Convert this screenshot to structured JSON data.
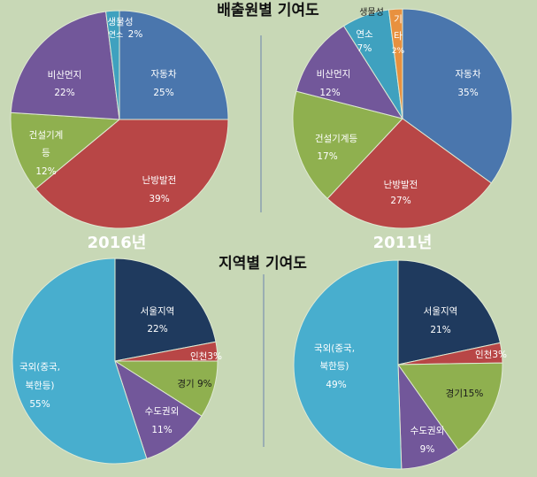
{
  "titles": {
    "top": "배출원별 기여도",
    "bottom": "지역별 기여도"
  },
  "years": {
    "left": "2016년",
    "right": "2011년"
  },
  "chart_data": [
    {
      "type": "pie",
      "title": "배출원별 기여도",
      "year": "2016년",
      "slices": [
        {
          "name": "자동차",
          "value": 25,
          "label": "25%",
          "color": "#4a76ad"
        },
        {
          "name": "난방발전",
          "value": 39,
          "label": "39%",
          "color": "#b84646"
        },
        {
          "name": "건설기계등",
          "value": 12,
          "label": "12%",
          "color": "#8fb04f"
        },
        {
          "name": "비산먼지",
          "value": 22,
          "label": "22%",
          "color": "#72579a"
        },
        {
          "name": "생물성연소",
          "value": 2,
          "label": "2%",
          "color": "#3fa1bf"
        }
      ]
    },
    {
      "type": "pie",
      "title": "배출원별 기여도",
      "year": "2011년",
      "slices": [
        {
          "name": "자동차",
          "value": 35,
          "label": "35%",
          "color": "#4a76ad"
        },
        {
          "name": "난방발전",
          "value": 27,
          "label": "27%",
          "color": "#b84646"
        },
        {
          "name": "건설기계등",
          "value": 17,
          "label": "17%",
          "color": "#8fb04f"
        },
        {
          "name": "비산먼지",
          "value": 12,
          "label": "12%",
          "color": "#72579a"
        },
        {
          "name": "생물성연소",
          "value": 7,
          "label": "7%",
          "color": "#3fa1bf"
        },
        {
          "name": "기타",
          "value": 2,
          "label": "2%",
          "color": "#e8913f"
        }
      ]
    },
    {
      "type": "pie",
      "title": "지역별 기여도",
      "year": "2016년",
      "slices": [
        {
          "name": "서울지역",
          "value": 22,
          "label": "22%",
          "color": "#1f3a5e"
        },
        {
          "name": "인천",
          "value": 3,
          "label": "3%",
          "color": "#b84646"
        },
        {
          "name": "경기",
          "value": 9,
          "label": "9%",
          "color": "#8fb04f"
        },
        {
          "name": "수도권외",
          "value": 11,
          "label": "11%",
          "color": "#72579a"
        },
        {
          "name": "국외(중국, 북한등)",
          "value": 55,
          "label": "55%",
          "color": "#48aece"
        }
      ]
    },
    {
      "type": "pie",
      "title": "지역별 기여도",
      "year": "2011년",
      "slices": [
        {
          "name": "서울지역",
          "value": 21,
          "label": "21%",
          "color": "#1f3a5e"
        },
        {
          "name": "인천",
          "value": 3,
          "label": "3%",
          "color": "#b84646"
        },
        {
          "name": "경기",
          "value": 15,
          "label": "15%",
          "color": "#8fb04f"
        },
        {
          "name": "수도권외",
          "value": 9,
          "label": "9%",
          "color": "#72579a"
        },
        {
          "name": "국외(중국, 북한등)",
          "value": 49,
          "label": "49%",
          "color": "#48aece"
        }
      ]
    }
  ],
  "labels": {
    "p1": {
      "car": "자동차",
      "car_pct": "25%",
      "heat": "난방발전",
      "heat_pct": "39%",
      "const_a": "건설기계",
      "const_b": "등",
      "const_pct": "12%",
      "dust": "비산먼지",
      "dust_pct": "22%",
      "bio_a": "생물성",
      "bio_b": "연소",
      "bio_pct": "2%"
    },
    "p2": {
      "car": "자동차",
      "car_pct": "35%",
      "heat": "난방발전",
      "heat_pct": "27%",
      "const": "건설기계등",
      "const_pct": "17%",
      "dust": "비산먼지",
      "dust_pct": "12%",
      "bio_top": "생물성",
      "bio": "연소",
      "bio_pct": "7%",
      "etc_a": "기",
      "etc_b": "타",
      "etc_pct": "2%"
    },
    "p3": {
      "seoul": "서울지역",
      "seoul_pct": "22%",
      "incheon": "인천3%",
      "gyeonggi": "경기 9%",
      "metro": "수도권외",
      "metro_pct": "11%",
      "foreign_a": "국외(중국,",
      "foreign_b": "북한등)",
      "foreign_pct": "55%"
    },
    "p4": {
      "seoul": "서울지역",
      "seoul_pct": "21%",
      "incheon": "인천3%",
      "gyeonggi": "경기15%",
      "metro": "수도권외",
      "metro_pct": "9%",
      "foreign_a": "국외(중국,",
      "foreign_b": "북한등)",
      "foreign_pct": "49%"
    }
  }
}
